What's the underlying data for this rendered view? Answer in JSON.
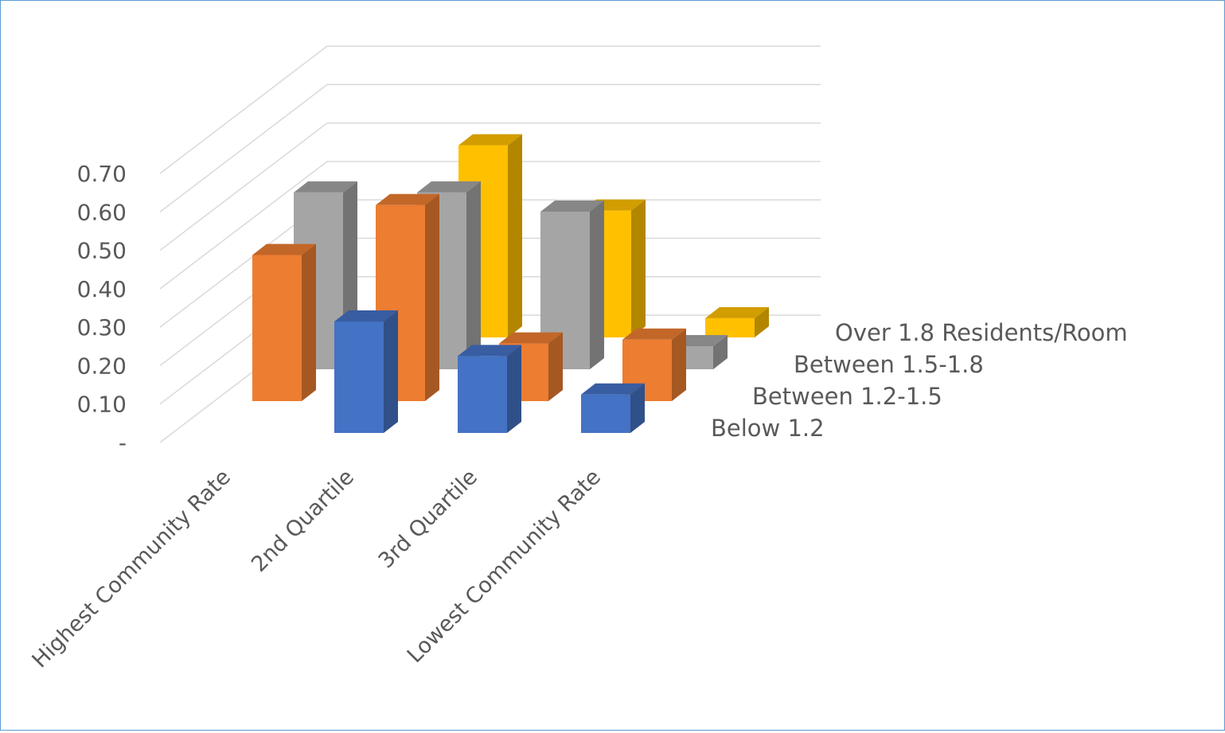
{
  "chart_data": {
    "type": "bar3d",
    "categories": [
      "Highest Community Rate",
      "2nd Quartile",
      "3rd Quartile",
      "Lowest Community Rate"
    ],
    "series": [
      {
        "name": "Below 1.2",
        "color": "#4472c4",
        "values": [
          null,
          0.29,
          0.2,
          0.1
        ]
      },
      {
        "name": "Between 1.2-1.5",
        "color": "#ed7d31",
        "values": [
          0.38,
          0.51,
          0.15,
          0.16
        ]
      },
      {
        "name": "Between 1.5-1.8",
        "color": "#a5a5a5",
        "values": [
          0.46,
          0.46,
          0.41,
          0.06
        ]
      },
      {
        "name": "Over 1.8 Residents/Room",
        "color": "#ffc000",
        "values": [
          null,
          0.5,
          0.33,
          0.05
        ]
      }
    ],
    "ylim": [
      0,
      0.7
    ],
    "yticks": [
      {
        "value": 0,
        "label": "-"
      },
      {
        "value": 0.1,
        "label": "0.10"
      },
      {
        "value": 0.2,
        "label": "0.20"
      },
      {
        "value": 0.3,
        "label": "0.30"
      },
      {
        "value": 0.4,
        "label": "0.40"
      },
      {
        "value": 0.5,
        "label": "0.50"
      },
      {
        "value": 0.6,
        "label": "0.60"
      },
      {
        "value": 0.7,
        "label": "0.70"
      }
    ],
    "grid": true
  }
}
